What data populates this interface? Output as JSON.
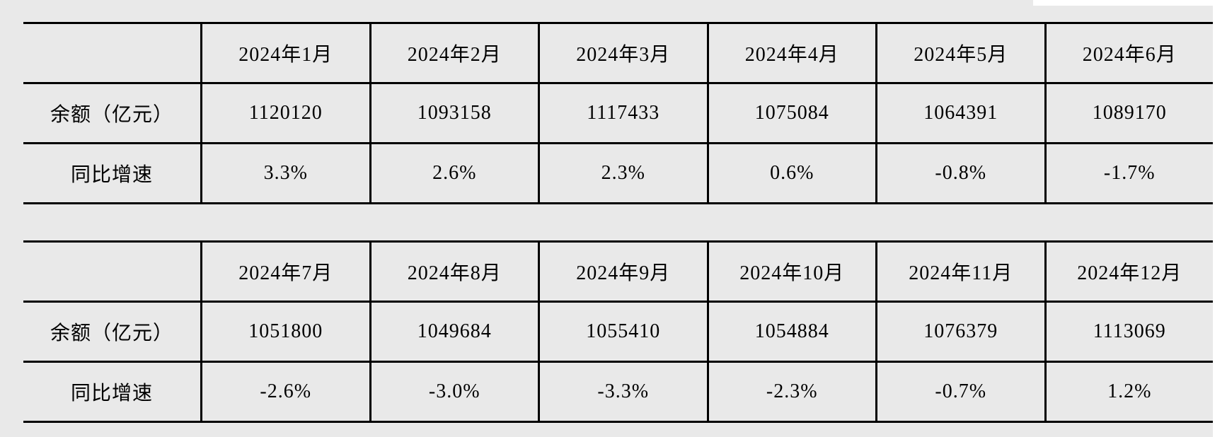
{
  "page": {
    "background_color": "#e9e9e9",
    "margin_color": "#ffffff",
    "line_color": "#000000",
    "text_color": "#000000"
  },
  "tables": [
    {
      "header": [
        "",
        "2024年1月",
        "2024年2月",
        "2024年3月",
        "2024年4月",
        "2024年5月",
        "2024年6月"
      ],
      "rows": [
        {
          "label": "余额（亿元）",
          "values": [
            "1120120",
            "1093158",
            "1117433",
            "1075084",
            "1064391",
            "1089170"
          ]
        },
        {
          "label": "同比增速",
          "values": [
            "3.3%",
            "2.6%",
            "2.3%",
            "0.6%",
            "-0.8%",
            "-1.7%"
          ]
        }
      ]
    },
    {
      "header": [
        "",
        "2024年7月",
        "2024年8月",
        "2024年9月",
        "2024年10月",
        "2024年11月",
        "2024年12月"
      ],
      "rows": [
        {
          "label": "余额（亿元）",
          "values": [
            "1051800",
            "1049684",
            "1055410",
            "1054884",
            "1076379",
            "1113069"
          ]
        },
        {
          "label": "同比增速",
          "values": [
            "-2.6%",
            "-3.0%",
            "-3.3%",
            "-2.3%",
            "-0.7%",
            "1.2%"
          ]
        }
      ]
    }
  ],
  "chart_data": {
    "type": "table",
    "title": "",
    "categories": [
      "2024年1月",
      "2024年2月",
      "2024年3月",
      "2024年4月",
      "2024年5月",
      "2024年6月",
      "2024年7月",
      "2024年8月",
      "2024年9月",
      "2024年10月",
      "2024年11月",
      "2024年12月"
    ],
    "series": [
      {
        "name": "余额（亿元）",
        "values": [
          1120120,
          1093158,
          1117433,
          1075084,
          1064391,
          1089170,
          1051800,
          1049684,
          1055410,
          1054884,
          1076379,
          1113069
        ]
      },
      {
        "name": "同比增速",
        "unit": "%",
        "values": [
          3.3,
          2.6,
          2.3,
          0.6,
          -0.8,
          -1.7,
          -2.6,
          -3.0,
          -3.3,
          -2.3,
          -0.7,
          1.2
        ]
      }
    ],
    "layout": "two stacked 3-row tables: months Jan-Jun on top, Jul-Dec below; first column holds row labels; grid lines black on light gray background"
  }
}
